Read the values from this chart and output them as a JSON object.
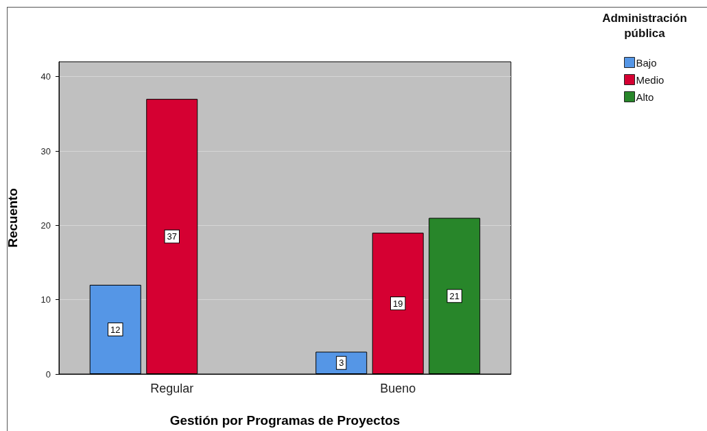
{
  "chart_data": {
    "type": "bar",
    "xlabel": "Gestión por Programas de Proyectos",
    "ylabel": "Recuento",
    "legend_title": "Administración pública",
    "categories": [
      "Regular",
      "Bueno"
    ],
    "series": [
      {
        "name": "Bajo",
        "color": "#5596e6",
        "values": [
          12,
          3
        ]
      },
      {
        "name": "Medio",
        "color": "#d50032",
        "values": [
          37,
          19
        ]
      },
      {
        "name": "Alto",
        "color": "#28862a",
        "values": [
          null,
          21
        ]
      }
    ],
    "ylim": [
      0,
      42
    ],
    "yticks": [
      0,
      10,
      20,
      30,
      40
    ],
    "grid": "y",
    "legend": "top right",
    "data_labels": true
  }
}
